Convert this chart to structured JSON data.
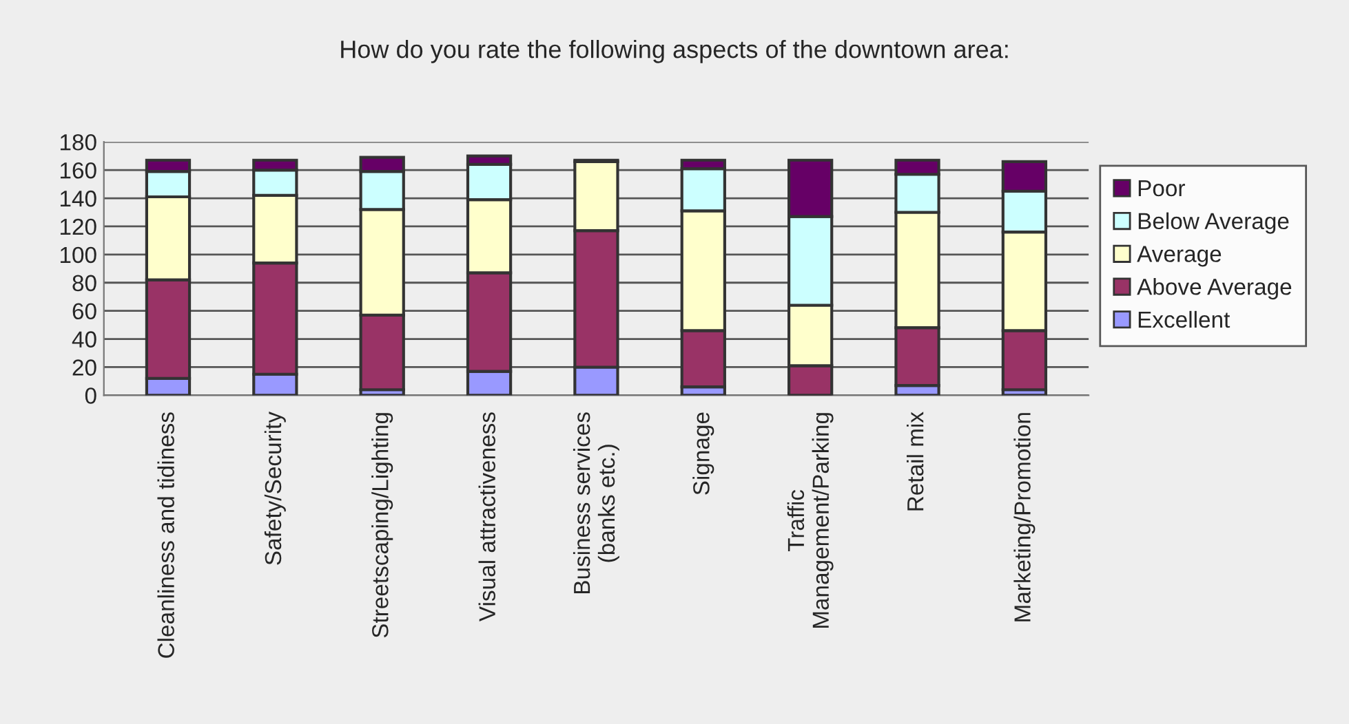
{
  "chart_data": {
    "type": "bar",
    "stacked": true,
    "title": "How do you rate the following aspects of the downtown area:",
    "categories": [
      "Cleanliness and tidiness",
      "Safety/Security",
      "Streetscaping/Lighting",
      "Visual attractiveness",
      "Business services\n(banks etc.)",
      "Signage",
      "Traffic\nManagement/Parking",
      "Retail mix",
      "Marketing/Promotion"
    ],
    "series": [
      {
        "name": "Excellent",
        "color": "#9999ff",
        "values": [
          12,
          15,
          4,
          17,
          20,
          6,
          0,
          7,
          4
        ]
      },
      {
        "name": "Above Average",
        "color": "#993366",
        "values": [
          70,
          79,
          53,
          70,
          97,
          40,
          21,
          41,
          42
        ]
      },
      {
        "name": "Average",
        "color": "#ffffcc",
        "values": [
          59,
          48,
          75,
          52,
          49,
          85,
          43,
          82,
          70
        ]
      },
      {
        "name": "Below Average",
        "color": "#ccffff",
        "values": [
          18,
          18,
          27,
          25,
          null,
          30,
          63,
          27,
          29
        ]
      },
      {
        "name": "Poor",
        "color": "#660066",
        "values": [
          8,
          7,
          10,
          6,
          1,
          6,
          40,
          10,
          21
        ]
      }
    ],
    "ylim": [
      0,
      180
    ],
    "yticks": [
      0,
      20,
      40,
      60,
      80,
      100,
      120,
      140,
      160,
      180
    ],
    "grid": "y",
    "legend": "right"
  }
}
